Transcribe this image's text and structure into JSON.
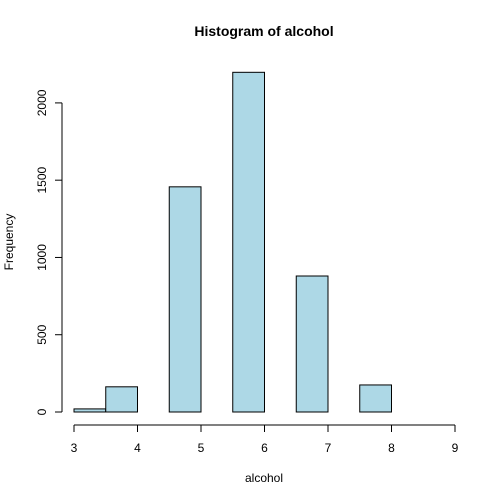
{
  "chart_data": {
    "type": "bar",
    "title": "Histogram of alcohol",
    "xlabel": "alcohol",
    "ylabel": "Frequency",
    "bar_color": "#add8e6",
    "xlim": [
      3,
      9
    ],
    "ylim": [
      0,
      2200
    ],
    "xticks": [
      3,
      4,
      5,
      6,
      7,
      8,
      9
    ],
    "yticks": [
      0,
      500,
      1000,
      1500,
      2000
    ],
    "bins": [
      {
        "x0": 3.0,
        "x1": 3.5,
        "count": 20
      },
      {
        "x0": 3.5,
        "x1": 4.0,
        "count": 163
      },
      {
        "x0": 4.0,
        "x1": 4.5,
        "count": 0
      },
      {
        "x0": 4.5,
        "x1": 5.0,
        "count": 1457
      },
      {
        "x0": 5.0,
        "x1": 5.5,
        "count": 0
      },
      {
        "x0": 5.5,
        "x1": 6.0,
        "count": 2198
      },
      {
        "x0": 6.0,
        "x1": 6.5,
        "count": 0
      },
      {
        "x0": 6.5,
        "x1": 7.0,
        "count": 880
      },
      {
        "x0": 7.0,
        "x1": 7.5,
        "count": 0
      },
      {
        "x0": 7.5,
        "x1": 8.0,
        "count": 175
      },
      {
        "x0": 8.0,
        "x1": 8.5,
        "count": 0
      },
      {
        "x0": 8.5,
        "x1": 9.0,
        "count": 0
      }
    ]
  }
}
